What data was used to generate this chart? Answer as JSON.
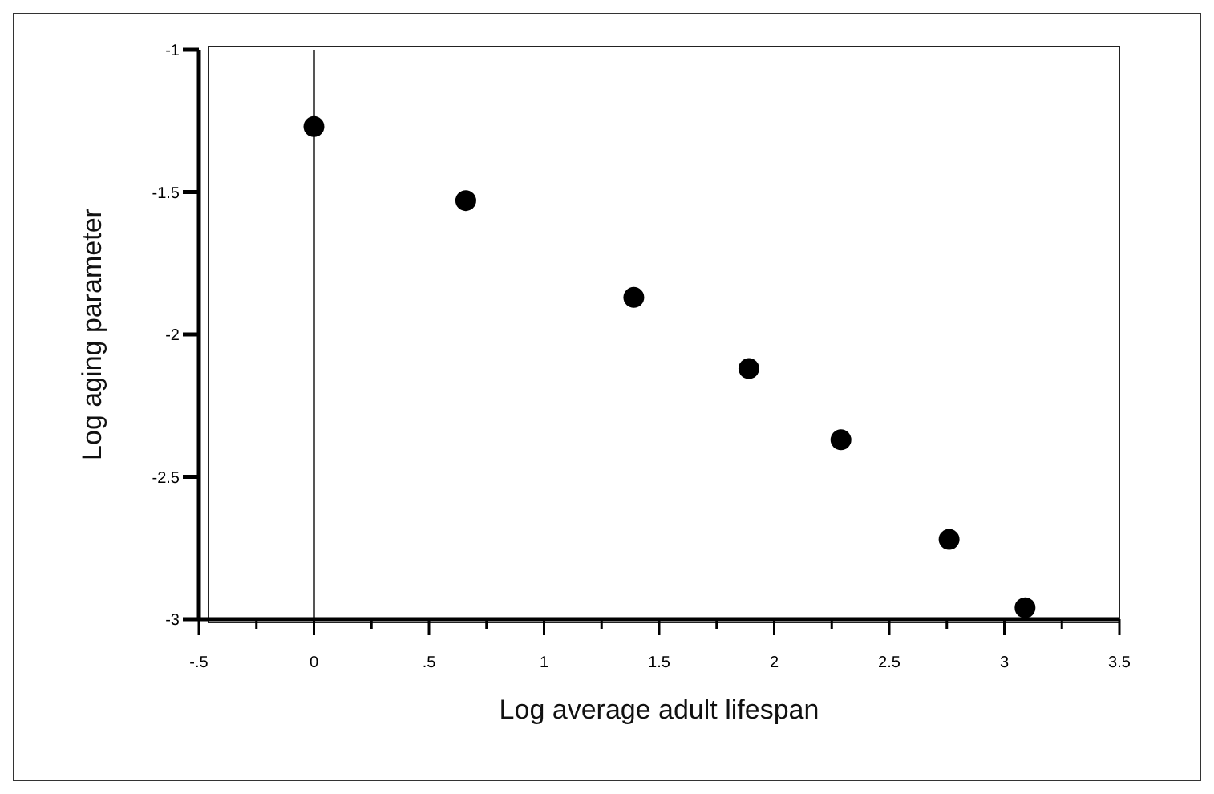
{
  "chart_data": {
    "type": "scatter",
    "xlabel": "Log average adult lifespan",
    "ylabel": "Log aging parameter",
    "x": [
      0,
      0.66,
      1.39,
      1.89,
      2.29,
      2.76,
      3.09
    ],
    "series": [
      {
        "color": "#000000",
        "values": [
          -1.27,
          -1.53,
          -1.87,
          -2.12,
          -2.37,
          -2.72,
          -2.96
        ]
      }
    ],
    "marker": "circle",
    "xlim": [
      -0.5,
      3.5
    ],
    "xticks": [
      {
        "value": -0.5,
        "label": "-.5"
      },
      {
        "value": -0.25,
        "label": null
      },
      {
        "value": 0,
        "label": "0"
      },
      {
        "value": 0.25,
        "label": null
      },
      {
        "value": 0.5,
        "label": ".5"
      },
      {
        "value": 0.75,
        "label": null
      },
      1,
      {
        "value": 1.25,
        "label": null
      },
      1.5,
      {
        "value": 1.75,
        "label": null
      },
      2,
      {
        "value": 2.25,
        "label": null
      },
      2.5,
      {
        "value": 2.75,
        "label": null
      },
      3,
      {
        "value": 3.25,
        "label": null
      },
      3.5
    ],
    "ylim": [
      -3,
      -1
    ],
    "yticks": [
      -3,
      -2.5,
      -2,
      -1.5,
      -1
    ],
    "ref_lines": [
      {
        "axis": "x",
        "value": 0,
        "color": "#555555"
      }
    ]
  }
}
